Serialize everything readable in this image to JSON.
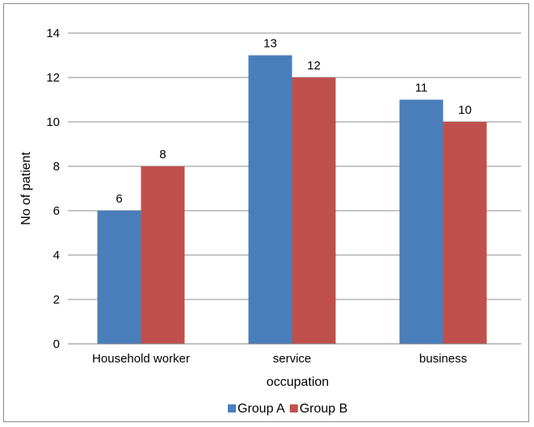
{
  "chart_data": {
    "type": "bar",
    "title": "",
    "xlabel": "occupation",
    "ylabel": "No of patient",
    "categories": [
      "Household worker",
      "service",
      "business"
    ],
    "series": [
      {
        "name": "Group A",
        "values": [
          6,
          13,
          11
        ],
        "color": "#4a7ebb"
      },
      {
        "name": "Group B",
        "values": [
          8,
          12,
          10
        ],
        "color": "#c0504d"
      }
    ],
    "ylim": [
      0,
      14
    ],
    "yticks": [
      "0",
      "2",
      "4",
      "6",
      "8",
      "10",
      "12",
      "14"
    ],
    "data_labels": [
      [
        "6",
        "13",
        "11"
      ],
      [
        "8",
        "12",
        "10"
      ]
    ],
    "grid": true,
    "legend_position": "bottom"
  }
}
